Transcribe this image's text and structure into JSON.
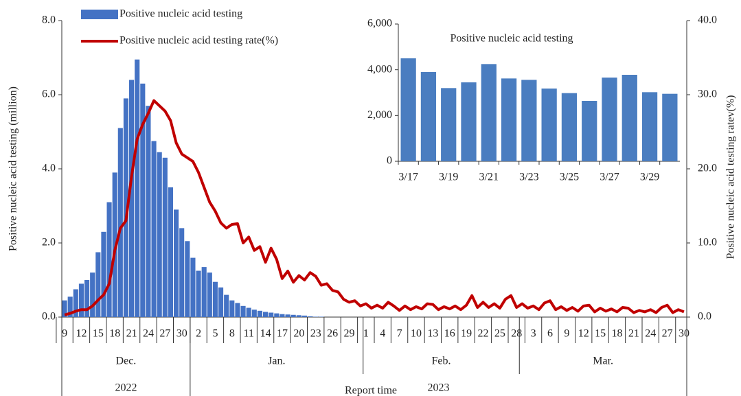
{
  "chart_data": [
    {
      "type": "combo",
      "y_label": "Positive  nucleic acid testing (million)",
      "y2_label": "Positive  nucleic acid testing  ratev(%)",
      "x_label": "Report time",
      "ylim": [
        0,
        8
      ],
      "yticks": [
        {
          "value": 0,
          "label": "0.0"
        },
        {
          "value": 2,
          "label": "2.0"
        },
        {
          "value": 4,
          "label": "4.0"
        },
        {
          "value": 6,
          "label": "6.0"
        },
        {
          "value": 8,
          "label": "8.0"
        }
      ],
      "y2lim": [
        0,
        40
      ],
      "y2ticks": [
        {
          "value": 0,
          "label": "0.0"
        },
        {
          "value": 10,
          "label": "10.0"
        },
        {
          "value": 20,
          "label": "20.0"
        },
        {
          "value": 30,
          "label": "30.0"
        },
        {
          "value": 40,
          "label": "40.0"
        }
      ],
      "legend": "upper left",
      "years": [
        {
          "label": "2022",
          "months": [
            {
              "label": "Dec.",
              "days": [
                "9",
                null,
                null,
                "12",
                null,
                null,
                "15",
                null,
                null,
                "18",
                null,
                null,
                "21",
                null,
                null,
                "24",
                null,
                null,
                "27",
                null,
                null,
                "30",
                null
              ]
            }
          ]
        },
        {
          "label": "2023",
          "months": [
            {
              "label": "Jan.",
              "days": [
                null,
                "2",
                null,
                null,
                "5",
                null,
                null,
                "8",
                null,
                null,
                "11",
                null,
                null,
                "14",
                null,
                null,
                "17",
                null,
                null,
                "20",
                null,
                null,
                "23",
                null,
                null,
                "26",
                null,
                null,
                "29",
                null,
                null
              ]
            },
            {
              "label": "Feb.",
              "days": [
                "1",
                null,
                null,
                "4",
                null,
                null,
                "7",
                null,
                null,
                "10",
                null,
                null,
                "13",
                null,
                null,
                "16",
                null,
                null,
                "19",
                null,
                null,
                "22",
                null,
                null,
                "25",
                null,
                null,
                "28"
              ]
            },
            {
              "label": "Mar.",
              "days": [
                null,
                null,
                "3",
                null,
                null,
                "6",
                null,
                null,
                "9",
                null,
                null,
                "12",
                null,
                null,
                "15",
                null,
                null,
                "18",
                null,
                null,
                "21",
                null,
                null,
                "24",
                null,
                null,
                "27",
                null,
                null,
                "30"
              ]
            }
          ]
        }
      ],
      "series": [
        {
          "name": "Positive nucleic acid testing",
          "type": "bar",
          "color": "#4472c4",
          "values": [
            0.45,
            0.55,
            0.75,
            0.9,
            1.0,
            1.2,
            1.75,
            2.3,
            3.1,
            3.9,
            5.1,
            5.9,
            6.4,
            6.95,
            6.3,
            5.7,
            4.75,
            4.45,
            4.3,
            3.5,
            2.9,
            2.4,
            2.05,
            1.6,
            1.25,
            1.35,
            1.2,
            0.95,
            0.8,
            0.6,
            0.45,
            0.38,
            0.3,
            0.25,
            0.2,
            0.17,
            0.14,
            0.12,
            0.1,
            0.08,
            0.07,
            0.06,
            0.05,
            0.04,
            0.02,
            0.01,
            0.01,
            0,
            0,
            0,
            0,
            0,
            0,
            0,
            0,
            0,
            0,
            0,
            0,
            0,
            0,
            0,
            0,
            0,
            0,
            0,
            0,
            0,
            0,
            0,
            0,
            0,
            0,
            0,
            0,
            0,
            0,
            0,
            0,
            0,
            0,
            0,
            0,
            0,
            0,
            0,
            0,
            0,
            0,
            0,
            0,
            0,
            0,
            0,
            0,
            0,
            0,
            0,
            0,
            0,
            0,
            0,
            0,
            0,
            0,
            0,
            0,
            0,
            0,
            0,
            0,
            0
          ]
        },
        {
          "name": "Positive nucleic acid testing rate(%)",
          "type": "line",
          "axis": "y2",
          "color": "#c00000",
          "values": [
            0.3,
            0.5,
            0.8,
            1.0,
            1.0,
            1.5,
            2.3,
            3.0,
            4.5,
            9,
            12,
            13,
            19,
            24,
            26,
            27.5,
            29.2,
            28.5,
            27.8,
            26.5,
            23.5,
            22,
            21.5,
            21,
            19.5,
            17.5,
            15.5,
            14.3,
            12.7,
            12,
            12.5,
            12.6,
            10,
            10.8,
            9,
            9.5,
            7.4,
            9.3,
            7.8,
            5.2,
            6.2,
            4.7,
            5.6,
            5,
            6,
            5.5,
            4.3,
            4.5,
            3.6,
            3.4,
            2.4,
            2,
            2.2,
            1.5,
            1.8,
            1.2,
            1.6,
            1.2,
            2.0,
            1.5,
            0.9,
            1.5,
            1.0,
            1.4,
            1.1,
            1.8,
            1.7,
            1.0,
            1.4,
            1.1,
            1.5,
            1.0,
            1.6,
            2.9,
            1.3,
            2.0,
            1.3,
            1.8,
            1.2,
            2.4,
            2.9,
            1.3,
            1.8,
            1.2,
            1.5,
            1.0,
            1.9,
            2.2,
            1.0,
            1.4,
            0.9,
            1.3,
            0.8,
            1.5,
            1.6,
            0.7,
            1.2,
            0.8,
            1.1,
            0.7,
            1.3,
            1.2,
            0.6,
            0.9,
            0.7,
            1.0,
            0.6,
            1.3,
            1.6,
            0.6,
            1.0,
            0.7
          ]
        }
      ]
    },
    {
      "type": "bar",
      "title": "Positive nucleic acid testing",
      "color": "#4a7dc0",
      "categories": [
        "3/17",
        null,
        "3/19",
        null,
        "3/21",
        null,
        "3/23",
        null,
        "3/25",
        null,
        "3/27",
        null,
        "3/29",
        null
      ],
      "values": [
        4500,
        3900,
        3200,
        3450,
        4250,
        3620,
        3560,
        3180,
        2980,
        2640,
        3660,
        3780,
        3020,
        2950
      ],
      "ylim": [
        0,
        6000
      ],
      "yticks": [
        0,
        {
          "value": 2000,
          "label": "2,000"
        },
        {
          "value": 4000,
          "label": "4,000"
        },
        {
          "value": 6000,
          "label": "6,000"
        }
      ]
    }
  ]
}
